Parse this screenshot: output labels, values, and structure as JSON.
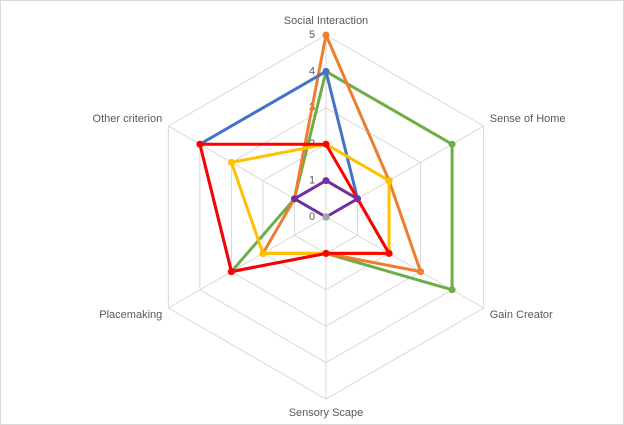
{
  "chart_data": {
    "type": "radar",
    "categories": [
      "Social Interaction",
      "Sense of Home",
      "Gain Creator",
      "Sensory Scape",
      "Placemaking",
      "Other criterion"
    ],
    "rlim": [
      0,
      5
    ],
    "rticks": [
      0,
      1,
      2,
      3,
      4,
      5
    ],
    "grid": true,
    "series": [
      {
        "color": "#70ad47",
        "values": [
          4,
          4,
          4,
          1,
          3,
          1
        ]
      },
      {
        "color": "#ed7d31",
        "values": [
          5,
          2,
          3,
          1,
          2,
          1
        ]
      },
      {
        "color": "#4472c4",
        "values": [
          4,
          1,
          2,
          1,
          3,
          4
        ]
      },
      {
        "color": "#ffc000",
        "values": [
          2,
          2,
          2,
          1,
          2,
          3
        ]
      },
      {
        "color": "#ff0000",
        "values": [
          2,
          1,
          2,
          1,
          3,
          4
        ]
      },
      {
        "color": "#7030a0",
        "values": [
          1,
          1,
          0,
          0,
          0,
          1
        ]
      },
      {
        "color": "#a5a5a5",
        "values": [
          0,
          0,
          0,
          0,
          0,
          0
        ]
      }
    ]
  }
}
